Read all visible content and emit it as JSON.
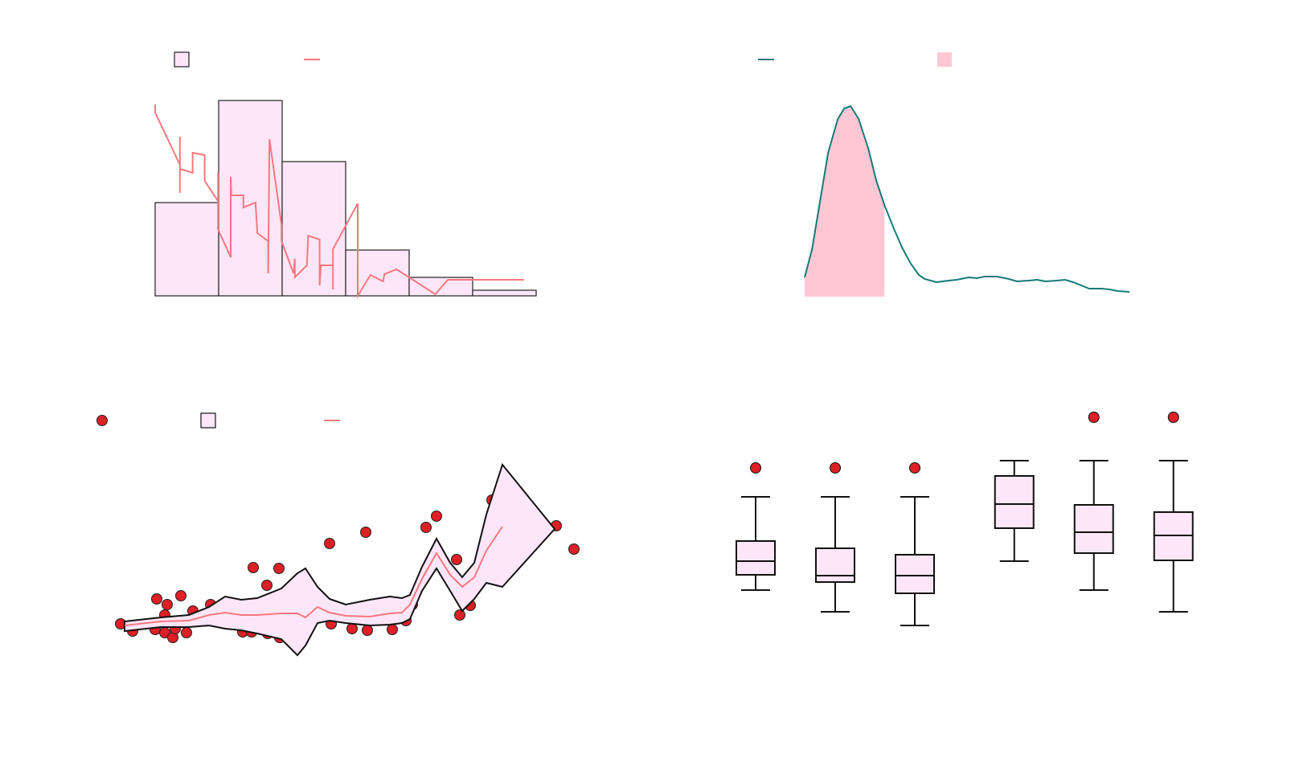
{
  "chart_data": [
    {
      "type": "histogram",
      "bins": [
        0,
        1,
        2,
        3,
        4,
        5,
        6
      ],
      "values": [
        116,
        243,
        167,
        57,
        23,
        7
      ],
      "color": "#fde6f7",
      "edgecolor": "#222222",
      "xlim": [
        0,
        6
      ],
      "ylim": [
        0,
        250
      ],
      "legend": true,
      "line": {
        "color": "#f8787f",
        "x": [
          0,
          0,
          0.39,
          0.39,
          0.39,
          0.39,
          0.59,
          0.59,
          0.78,
          0.78,
          0.99,
          0.99,
          0.99,
          1.19,
          1.19,
          1.2,
          1.39,
          1.39,
          1.58,
          1.61,
          1.78,
          1.78,
          1.8,
          1.99,
          1.99,
          2.18,
          2.2,
          2.2,
          2.39,
          2.41,
          2.59,
          2.59,
          2.61,
          2.8,
          2.8,
          2.8,
          3.19,
          3.19,
          3.39,
          3.59,
          3.61,
          3.8,
          4,
          4.41,
          4.61,
          5.81
        ],
        "y": [
          238,
          228,
          163,
          198,
          128,
          158,
          153,
          178,
          175,
          143,
          118,
          153,
          83,
          48,
          148,
          125,
          125,
          110,
          116,
          78,
          68,
          28,
          195,
          88,
          68,
          28,
          46,
          23,
          38,
          75,
          70,
          13,
          38,
          38,
          8,
          58,
          115,
          0,
          26,
          18,
          27,
          33,
          23,
          2,
          20,
          20
        ]
      }
    },
    {
      "type": "kde",
      "color": "#167a7a",
      "xlim": [
        0,
        10.1
      ],
      "ylim": [
        0,
        250
      ],
      "legend": true,
      "x": [
        0,
        0.23,
        0.48,
        0.73,
        1.03,
        1.23,
        1.43,
        1.68,
        1.98,
        2.23,
        2.48,
        2.78,
        3.03,
        3.3,
        3.55,
        3.73,
        4.1,
        4.48,
        4.73,
        5.1,
        5.35,
        5.6,
        5.98,
        6.35,
        6.6,
        6.98,
        7.23,
        7.48,
        7.85,
        8.1,
        8.35,
        8.85,
        9.23,
        9.48,
        9.73,
        10.1
      ],
      "y": [
        24,
        59,
        119,
        179,
        221,
        234,
        237,
        221,
        184,
        144,
        114,
        84,
        61,
        41,
        27,
        22,
        18,
        20,
        21,
        24,
        23,
        25,
        25,
        22,
        19,
        20,
        21,
        19,
        20,
        21,
        18,
        10,
        10,
        9,
        7,
        6
      ],
      "shade": {
        "color": "#ffc6d4",
        "x": [
          0,
          2.48
        ]
      }
    },
    {
      "type": "scatter",
      "color": "#dd1f26",
      "edgecolor": "#222222",
      "xlim": [
        0,
        56.5
      ],
      "ylim": [
        0,
        25
      ],
      "legend": true,
      "x": [
        0,
        1.5,
        4.3,
        4.5,
        5.5,
        5.8,
        5.5,
        6.5,
        6.8,
        7.5,
        8.2,
        9,
        11.2,
        15.2,
        16.3,
        16.5,
        18.2,
        18.3,
        19.7,
        19.8,
        26,
        26.2,
        28.8,
        30.5,
        30.7,
        33.8,
        35.5,
        36.3,
        38,
        39.3,
        41.8,
        42.2,
        43.5,
        46.2,
        54.2,
        56.4
      ],
      "y": [
        4.4,
        3.5,
        3.7,
        7.5,
        3.3,
        6.8,
        5.5,
        2.7,
        3.8,
        7.9,
        3.3,
        6,
        6.8,
        3.4,
        3.4,
        11.4,
        9.2,
        3.2,
        11.3,
        2.7,
        14.4,
        4.4,
        3.8,
        15.8,
        3.6,
        3.7,
        4.8,
        6.8,
        16.4,
        17.8,
        12.4,
        5.5,
        6.7,
        19.8,
        16.6,
        13.7
      ],
      "band": {
        "color": "#fde6f7",
        "edgecolor": "#111111",
        "mean_color": "#f8787f",
        "x": [
          0.5,
          5,
          8.5,
          11,
          13,
          15,
          17,
          20,
          22,
          23,
          24.5,
          26,
          28,
          31,
          33.5,
          35,
          36,
          37.5,
          39.3,
          41,
          42.5,
          44,
          45.5,
          47.5,
          54
        ],
        "upper": [
          4.7,
          5.2,
          5.5,
          6.5,
          7.8,
          7.4,
          7.6,
          8.8,
          10.7,
          11.3,
          9,
          7.5,
          6.8,
          7.4,
          7.8,
          7.6,
          8,
          11.5,
          15,
          12,
          10.2,
          12,
          18,
          24.2,
          16.2
        ],
        "lower": [
          3.5,
          4,
          4,
          4.2,
          3.8,
          3.6,
          3.2,
          2.5,
          0.5,
          1.7,
          4.5,
          4.8,
          4.5,
          4.2,
          4.3,
          4.5,
          5,
          8.5,
          11.3,
          8.5,
          6,
          7.5,
          9.5,
          9,
          16.2
        ],
        "mean": [
          4.2,
          4.7,
          4.8,
          5.5,
          5.8,
          5.5,
          5.5,
          5.7,
          5.7,
          5.2,
          6.5,
          5.8,
          5.4,
          5.3,
          5.7,
          5.8,
          6.8,
          10,
          13.2,
          10.5,
          9,
          10.2,
          13.5,
          16.5,
          null
        ]
      }
    },
    {
      "type": "box",
      "color": "#fde6f7",
      "edgecolor": "#111111",
      "flier_color": "#dd1f26",
      "xlim": [
        0.5,
        6.75
      ],
      "ylim": [
        0,
        30
      ],
      "positions": [
        1,
        2,
        3,
        4.25,
        5.25,
        6.25
      ],
      "boxes": [
        {
          "whislo": 6.6,
          "q1": 8.5,
          "med": 10.2,
          "q3": 12.7,
          "whishi": 18.2,
          "fliers": [
            21.8
          ]
        },
        {
          "whislo": 3.9,
          "q1": 7.6,
          "med": 8.4,
          "q3": 11.8,
          "whishi": 18.2,
          "fliers": [
            21.8
          ]
        },
        {
          "whislo": 2.2,
          "q1": 6.2,
          "med": 8.4,
          "q3": 11,
          "whishi": 18.2,
          "fliers": [
            21.8
          ]
        },
        {
          "whislo": 10.2,
          "q1": 14.3,
          "med": 17.3,
          "q3": 20.8,
          "whishi": 22.7,
          "fliers": []
        },
        {
          "whislo": 6.6,
          "q1": 11.2,
          "med": 13.8,
          "q3": 17.2,
          "whishi": 22.7,
          "fliers": [
            28.1
          ]
        },
        {
          "whislo": 3.9,
          "q1": 10.3,
          "med": 13.4,
          "q3": 16.3,
          "whishi": 22.7,
          "fliers": [
            28.1
          ]
        }
      ]
    }
  ]
}
